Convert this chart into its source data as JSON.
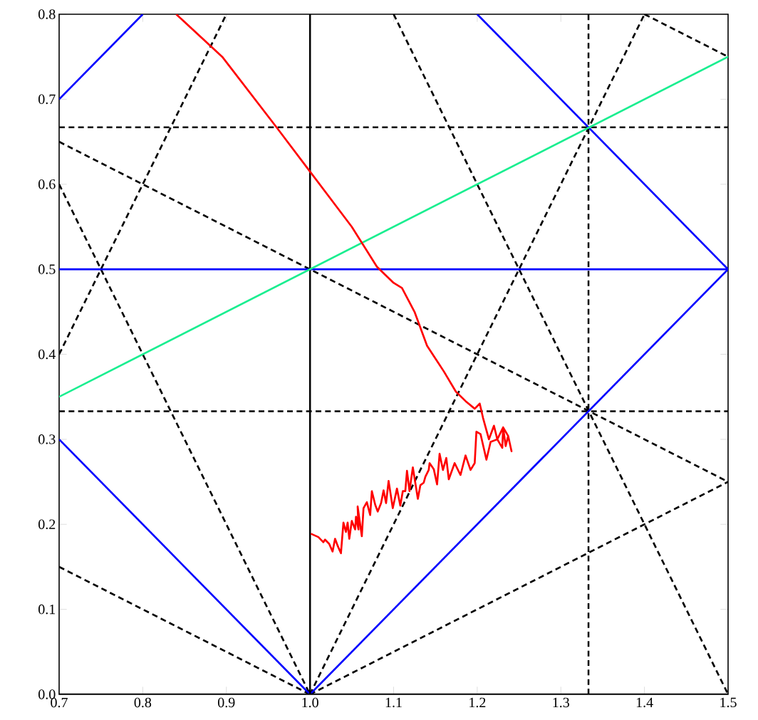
{
  "chart_data": {
    "type": "line",
    "xlim": [
      0.7,
      1.5
    ],
    "ylim": [
      0.0,
      0.8
    ],
    "xticks": [
      0.7,
      0.8,
      0.9,
      {
        "value": 1,
        "label": "1.0"
      },
      1.1,
      1.2,
      1.3,
      1.4,
      1.5
    ],
    "yticks": [
      {
        "value": 0,
        "label": "0.0"
      },
      0.1,
      0.2,
      0.3,
      0.4,
      0.5,
      0.6,
      0.7,
      0.8
    ],
    "grid": false,
    "marker": "none",
    "series": [
      {
        "color": "#000000",
        "line_style": "dashed",
        "x": [
          0.7,
          1.5
        ],
        "values": [
          0.667,
          0.667
        ]
      },
      {
        "color": "#000000",
        "line_style": "dashed",
        "x": [
          0.7,
          1.5
        ],
        "values": [
          0.333,
          0.333
        ]
      },
      {
        "color": "#000000",
        "line_style": "dashed",
        "x": [
          1.333,
          1.333
        ],
        "values": [
          0.0,
          0.8
        ]
      },
      {
        "color": "#000000",
        "line_style": "dashed",
        "x": [
          0.7,
          1.0
        ],
        "values": [
          0.6,
          0.0
        ]
      },
      {
        "color": "#000000",
        "line_style": "dashed",
        "x": [
          0.7,
          0.9
        ],
        "values": [
          0.4,
          0.8
        ]
      },
      {
        "color": "#000000",
        "line_style": "dashed",
        "x": [
          1.0,
          1.4
        ],
        "values": [
          0.0,
          0.8
        ]
      },
      {
        "color": "#000000",
        "line_style": "dashed",
        "x": [
          1.0,
          1.5
        ],
        "values": [
          0.0,
          0.25
        ]
      },
      {
        "color": "#000000",
        "line_style": "dashed",
        "x": [
          0.7,
          1.0
        ],
        "values": [
          0.15,
          0.0
        ]
      },
      {
        "color": "#000000",
        "line_style": "dashed",
        "x": [
          1.1,
          1.5
        ],
        "values": [
          0.8,
          0.0
        ]
      },
      {
        "color": "#000000",
        "line_style": "dashed",
        "x": [
          0.7,
          1.5
        ],
        "values": [
          0.65,
          0.25
        ]
      },
      {
        "color": "#000000",
        "line_style": "dashed",
        "x": [
          1.4,
          1.5
        ],
        "values": [
          0.8,
          0.75
        ]
      },
      {
        "color": "#0000ff",
        "line_style": "solid",
        "x": [
          0.7,
          0.8
        ],
        "values": [
          0.7,
          0.8
        ]
      },
      {
        "color": "#0000ff",
        "line_style": "solid",
        "x": [
          0.7,
          1.0
        ],
        "values": [
          0.3,
          0.0
        ]
      },
      {
        "color": "#0000ff",
        "line_style": "solid",
        "x": [
          1.0,
          1.5
        ],
        "values": [
          0.0,
          0.5
        ]
      },
      {
        "color": "#0000ff",
        "line_style": "solid",
        "x": [
          0.7,
          1.5
        ],
        "values": [
          0.5,
          0.5
        ]
      },
      {
        "color": "#0000ff",
        "line_style": "solid",
        "x": [
          1.2,
          1.5
        ],
        "values": [
          0.8,
          0.5
        ]
      },
      {
        "color": "#000000",
        "line_style": "solid",
        "x": [
          1.0,
          1.0
        ],
        "values": [
          0.0,
          0.8
        ]
      },
      {
        "color": "#000000",
        "line_style": "solid",
        "x": [
          0.7,
          1.5
        ],
        "values": [
          0.0,
          0.0
        ]
      },
      {
        "color": "#1aee90",
        "line_style": "solid",
        "x": [
          0.7,
          1.5
        ],
        "values": [
          0.35,
          0.75
        ]
      },
      {
        "color": "#ff0000",
        "line_style": "solid",
        "x": [
          0.84,
          0.895,
          0.96,
          1.0,
          1.05,
          1.08,
          1.1,
          1.11,
          1.125,
          1.14,
          1.16,
          1.1745,
          1.186,
          1.197,
          1.203,
          1.207,
          1.214,
          1.22,
          1.224,
          1.23,
          1.231,
          1.234,
          1.237,
          1.241,
          1.237,
          1.231,
          1.224,
          1.216,
          1.211,
          1.204,
          1.199,
          1.197,
          1.192,
          1.186,
          1.18,
          1.173,
          1.166,
          1.163,
          1.159,
          1.155,
          1.152,
          1.148,
          1.143,
          1.142,
          1.138,
          1.136,
          1.132,
          1.129,
          1.123,
          1.119,
          1.116,
          1.114,
          1.111,
          1.108,
          1.104,
          1.099,
          1.094,
          1.091,
          1.088,
          1.085,
          1.081,
          1.078,
          1.074,
          1.072,
          1.068,
          1.064,
          1.062,
          1.057,
          1.058,
          1.055,
          1.054,
          1.05,
          1.047,
          1.045,
          1.043,
          1.04,
          1.037,
          1.033,
          1.03,
          1.027,
          1.023,
          1.018,
          1.016,
          1.01,
          1.001
        ],
        "values": [
          0.8,
          0.75,
          0.667,
          0.615,
          0.55,
          0.503,
          0.484,
          0.478,
          0.45,
          0.41,
          0.38,
          0.356,
          0.345,
          0.336,
          0.342,
          0.325,
          0.3,
          0.316,
          0.3,
          0.29,
          0.314,
          0.292,
          0.304,
          0.286,
          0.304,
          0.314,
          0.3,
          0.297,
          0.276,
          0.306,
          0.309,
          0.272,
          0.264,
          0.281,
          0.258,
          0.272,
          0.253,
          0.278,
          0.264,
          0.283,
          0.247,
          0.265,
          0.272,
          0.264,
          0.256,
          0.249,
          0.246,
          0.23,
          0.267,
          0.239,
          0.263,
          0.239,
          0.239,
          0.222,
          0.242,
          0.219,
          0.251,
          0.225,
          0.24,
          0.225,
          0.215,
          0.223,
          0.239,
          0.211,
          0.226,
          0.219,
          0.186,
          0.221,
          0.194,
          0.209,
          0.194,
          0.204,
          0.183,
          0.202,
          0.191,
          0.202,
          0.166,
          0.175,
          0.183,
          0.168,
          0.177,
          0.182,
          0.179,
          0.185,
          0.189
        ]
      }
    ]
  }
}
